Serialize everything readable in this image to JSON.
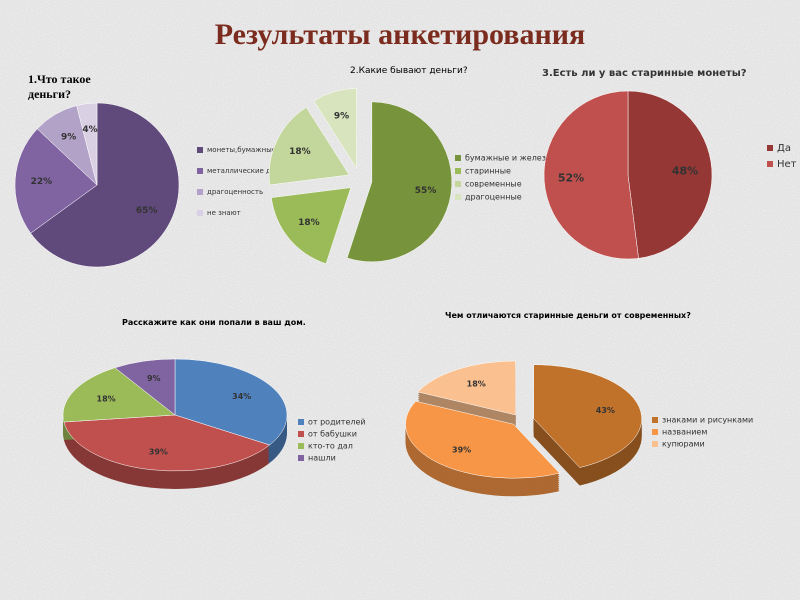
{
  "title": "Результаты анкетирования",
  "chart_data": [
    {
      "type": "pie",
      "title": "1.Что такое деньги?",
      "categories": [
        "монеты,бумажные деньги",
        "металлические деньги",
        "драгоценность",
        "не знают"
      ],
      "values": [
        65,
        22,
        9,
        4
      ],
      "value_labels": [
        "65%",
        "22%",
        "9%",
        "4%"
      ],
      "colors": [
        "#604a7b",
        "#8064a2",
        "#b3a2c7",
        "#d9d0e4"
      ]
    },
    {
      "type": "pie",
      "title": "2.Какие бывают деньги?",
      "categories": [
        "бумажные и железные",
        "старинные",
        "современные",
        "драгоценные"
      ],
      "values": [
        55,
        18,
        18,
        9
      ],
      "value_labels": [
        "55%",
        "18%",
        "18%",
        "9%"
      ],
      "colors": [
        "#77933c",
        "#9bbb59",
        "#c3d69b",
        "#d7e4bd"
      ]
    },
    {
      "type": "pie",
      "title": "3.Есть ли у вас старинные монеты?",
      "categories": [
        "Да",
        "Нет"
      ],
      "values": [
        48,
        52
      ],
      "value_labels": [
        "48%",
        "52%"
      ],
      "colors": [
        "#953735",
        "#c0504d"
      ]
    },
    {
      "type": "pie3d",
      "title": "Расскажите  как они попали в ваш дом.",
      "categories": [
        "от родителей",
        "от бабушки",
        "кто-то дал",
        "нашли"
      ],
      "values": [
        34,
        39,
        18,
        9
      ],
      "value_labels": [
        "34%",
        "39%",
        "18%",
        "9%"
      ],
      "colors": [
        "#4f81bd",
        "#c0504d",
        "#9bbb59",
        "#8064a2"
      ]
    },
    {
      "type": "pie3d",
      "title": "Чем отличаются старинные деньги от современных?",
      "categories": [
        "знаками и рисунками",
        "названием",
        "купюрами"
      ],
      "values": [
        43,
        39,
        18
      ],
      "value_labels": [
        "43%",
        "39%",
        "18%"
      ],
      "colors": [
        "#c0712a",
        "#f79646",
        "#fac08f"
      ]
    }
  ]
}
